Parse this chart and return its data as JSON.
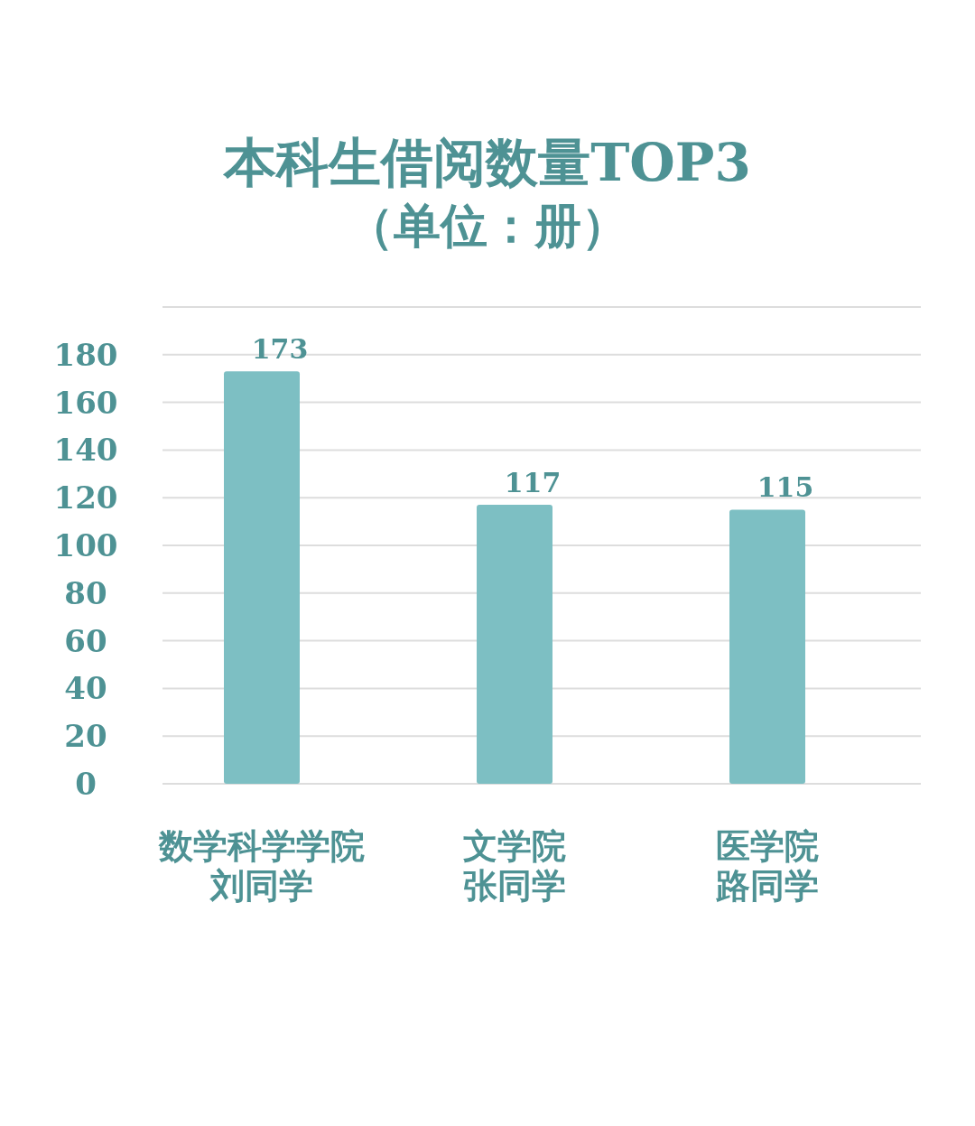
{
  "chart_data": {
    "type": "bar",
    "title": "本科生借阅数量TOP3",
    "subtitle": "（单位：册）",
    "categories": [
      "数学科学学院刘同学",
      "文学院张同学",
      "医学院路同学"
    ],
    "values": [
      173,
      117,
      115
    ],
    "color": "#7dbfc3",
    "ylim": [
      0,
      200
    ],
    "yticks": [
      0,
      20,
      40,
      60,
      80,
      100,
      120,
      140,
      160,
      180,
      {
        "value": 200,
        "label": null
      }
    ],
    "grid": "y",
    "data_labels": true
  }
}
